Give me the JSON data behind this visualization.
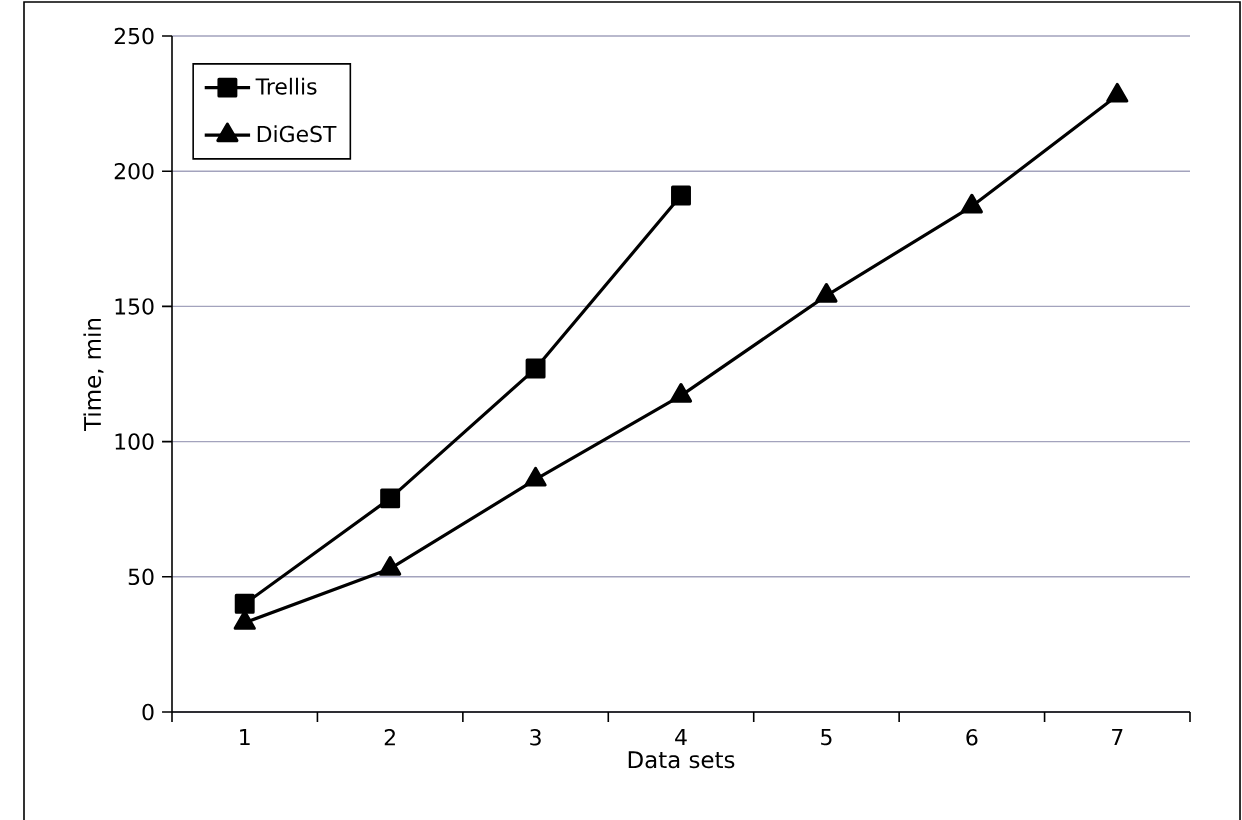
{
  "chart_data": {
    "type": "line",
    "xlabel": "Data sets",
    "ylabel": "Time, min",
    "categories": [
      "1",
      "2",
      "3",
      "4",
      "5",
      "6",
      "7"
    ],
    "series": [
      {
        "name": "Trellis",
        "color": "#000000",
        "marker": "square",
        "values": [
          40,
          79,
          127,
          191,
          null,
          null,
          null
        ]
      },
      {
        "name": "DiGeST",
        "color": "#000000",
        "marker": "triangle",
        "values": [
          33,
          53,
          86,
          117,
          154,
          187,
          228
        ]
      }
    ],
    "ylim": [
      0,
      250
    ],
    "yticks": [
      0,
      50,
      100,
      150,
      200,
      250
    ],
    "grid": "y",
    "legend": "top left",
    "line_style": "solid"
  }
}
